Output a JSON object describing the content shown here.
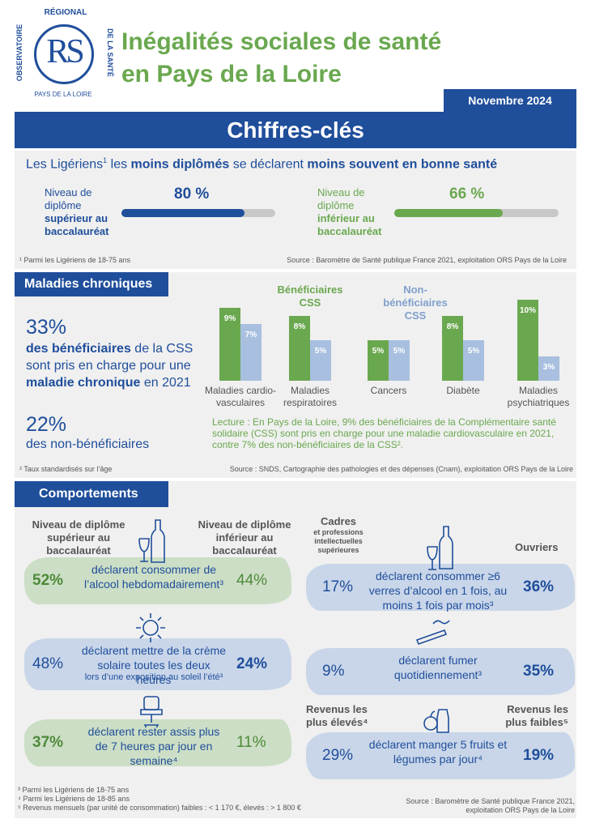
{
  "header": {
    "logo": {
      "top": "RÉGIONAL",
      "left": "OBSERVATOIRE",
      "right": "DE LA SANTÉ",
      "bottom": "PAYS DE LA LOIRE",
      "mark": "RS"
    },
    "title_lines": [
      "Inégalités sociales de santé",
      "en Pays de la Loire"
    ],
    "date": "Novembre 2024",
    "banner": "Chiffres-clés"
  },
  "education": {
    "headline": [
      "Les Ligériens",
      "1",
      " les ",
      "moins diplômés",
      " se déclarent ",
      "moins souvent en bonne santé"
    ],
    "xlim": [
      0,
      100
    ],
    "bars": [
      {
        "label": [
          "Niveau de",
          "diplôme",
          "supérieur au",
          "baccalauréat"
        ],
        "value": 80,
        "value_label": "80 %",
        "color": "#1f4e9b"
      },
      {
        "label": [
          "Niveau de",
          "diplôme",
          "inférieur au",
          "baccalauréat"
        ],
        "value": 66,
        "value_label": "66 %",
        "color": "#6aa84f"
      }
    ],
    "footnote": "¹ Parmi les Ligériens de 18-75 ans",
    "source": "Source : Baromètre de Santé publique France 2021, exploitation ORS Pays de la Loire"
  },
  "chronic": {
    "title": "Maladies chroniques",
    "stat1": "33%",
    "stat1_text": [
      "des bénéficiaires",
      " de la CSS sont pris en charge pour une ",
      "maladie chronique",
      " en 2021"
    ],
    "stat2": "22%",
    "stat2_text": "des non-bénéficiaires",
    "chart": {
      "type": "bar",
      "categories": [
        [
          "Maladies cardio-",
          "vasculaires"
        ],
        [
          "Maladies",
          "respiratoires"
        ],
        [
          "Cancers"
        ],
        [
          "Diabète"
        ],
        [
          "Maladies",
          "psychiatriques"
        ]
      ],
      "series": [
        {
          "name": "Bénéficiaires CSS",
          "color": "#6aa84f",
          "values": [
            9,
            8,
            5,
            8,
            10
          ],
          "value_labels": [
            "9%",
            "8%",
            "5%",
            "8%",
            "10%"
          ]
        },
        {
          "name": "Non-bénéficiaires CSS",
          "color": "#a8bfdf",
          "values": [
            7,
            5,
            5,
            5,
            3
          ],
          "value_labels": [
            "7%",
            "5%",
            "5%",
            "5%",
            "3%"
          ]
        }
      ],
      "ylim": [
        0,
        10
      ]
    },
    "reading": "Lecture : En Pays de la Loire, 9% des bénéficiaires de la Complémentaire santé solidaire (CSS) sont pris en charge pour une maladie cardiovasculaire en 2021, contre 7% des non-bénéficiaires de la CSS².",
    "footnote": "² Taux standardisés sur l’âge",
    "source": "Source : SNDS, Cartographie des pathologies et des dépenses (Cnam), exploitation ORS Pays de la Loire"
  },
  "behaviors": {
    "title": "Comportements",
    "left": {
      "header_left": "Niveau de diplôme supérieur au baccalauréat",
      "header_right": "Niveau de diplôme inférieur au baccalauréat",
      "items": [
        {
          "left": "52%",
          "text": "déclarent consommer de l’alcool hebdomadairement³",
          "right": "44%"
        },
        {
          "left": "48%",
          "text": "déclarent mettre de la crème solaire toutes les deux heures",
          "note": "lors d’une exposition au soleil l’été³",
          "right": "24%"
        },
        {
          "left": "37%",
          "text": "déclarent rester assis plus de 7 heures par jour en semaine⁴",
          "right": "11%"
        }
      ]
    },
    "right": {
      "header_left": "Cadres",
      "header_left_note": "et professions intellectuelles supérieures",
      "header_right": "Ouvriers",
      "header2_left": "Revenus les plus élevés⁴",
      "header2_right": "Revenus les plus faibles⁵",
      "items": [
        {
          "left": "17%",
          "text": "déclarent consommer ≥6 verres d’alcool en 1 fois, au moins 1 fois par mois³",
          "right": "36%"
        },
        {
          "left": "9%",
          "text": "déclarent fumer quotidiennement³",
          "right": "35%"
        },
        {
          "left": "29%",
          "text": "déclarent manger 5 fruits et légumes par jour⁴",
          "right": "19%"
        }
      ]
    },
    "footnotes": [
      "³ Parmi les Ligériens de 18-75 ans",
      "⁴ Parmi les Ligériens de 18-85 ans",
      "⁵ Revenus mensuels (par unité de consommation) faibles : < 1 170 €, élevés : > 1 800 €"
    ],
    "source": "Source : Baromètre de Santé publique France 2021, exploitation ORS Pays de la Loire"
  }
}
